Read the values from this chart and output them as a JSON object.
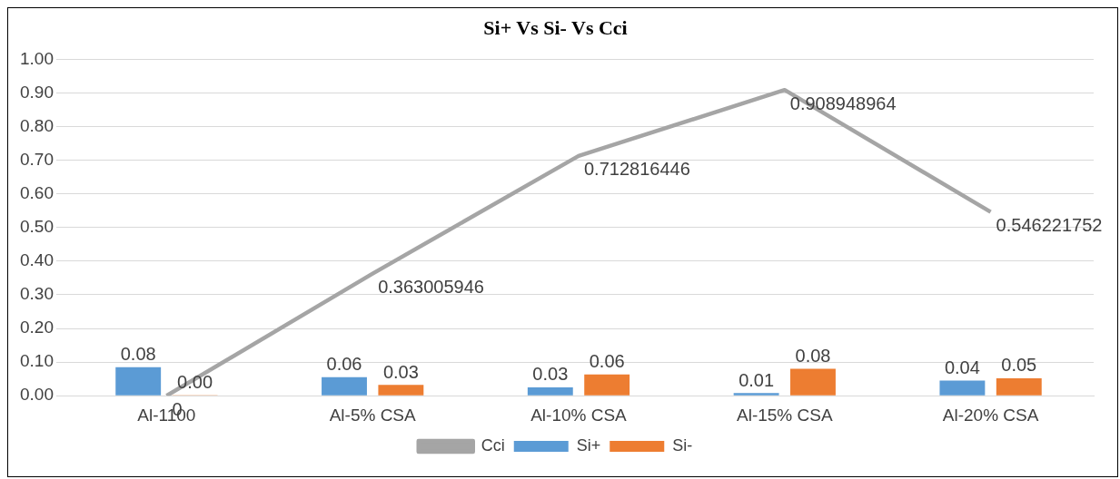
{
  "chart_data": {
    "type": "bar",
    "title": "Si+ Vs Si- Vs Cci",
    "categories": [
      "Al-1100",
      "Al-5% CSA",
      "Al-10% CSA",
      "Al-15% CSA",
      "Al-20% CSA"
    ],
    "series": [
      {
        "name": "Si+",
        "color": "#5b9bd5",
        "values": [
          0.085,
          0.055,
          0.025,
          0.008,
          0.045
        ],
        "value_labels": [
          "0.08",
          "0.06",
          "0.03",
          "0.01",
          "0.04"
        ]
      },
      {
        "name": "Si-",
        "color": "#ed7d31",
        "values": [
          0.002,
          0.032,
          0.063,
          0.08,
          0.052
        ],
        "value_labels": [
          "0.00",
          "0.03",
          "0.06",
          "0.08",
          "0.05"
        ]
      },
      {
        "name": "Cci",
        "type": "line",
        "color": "#a5a5a5",
        "values": [
          0,
          0.363005946,
          0.712816446,
          0.908948964,
          0.546221752
        ],
        "value_labels": [
          "0",
          "0.363005946",
          "0.712816446",
          "0.908948964",
          "0.546221752"
        ]
      }
    ],
    "ylim": [
      0,
      1
    ],
    "yticks": [
      {
        "value": 0,
        "label": "0.00"
      },
      {
        "value": 0.1,
        "label": "0.10"
      },
      {
        "value": 0.2,
        "label": "0.20"
      },
      {
        "value": 0.3,
        "label": "0.30"
      },
      {
        "value": 0.4,
        "label": "0.40"
      },
      {
        "value": 0.5,
        "label": "0.50"
      },
      {
        "value": 0.6,
        "label": "0.60"
      },
      {
        "value": 0.7,
        "label": "0.70"
      },
      {
        "value": 0.8,
        "label": "0.80"
      },
      {
        "value": 0.9,
        "label": "0.90"
      },
      {
        "value": 1,
        "label": "1.00"
      }
    ],
    "grid": "y",
    "legend": "bottom",
    "marker": "none",
    "line_style": "solid"
  }
}
